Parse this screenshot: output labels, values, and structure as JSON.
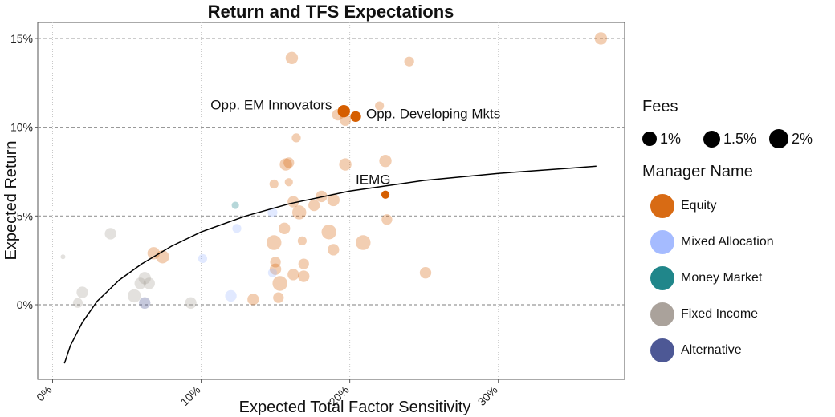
{
  "chart_data": {
    "type": "scatter",
    "title": "Return and TFS Expectations",
    "xlabel": "Expected Total Factor Sensitivity",
    "ylabel": "Expected Return",
    "xlim": [
      -0.01,
      0.385
    ],
    "ylim": [
      -0.042,
      0.159
    ],
    "x_ticks": [
      0,
      0.1,
      0.2,
      0.3
    ],
    "x_tick_labels": [
      "0%",
      "10%",
      "20%",
      "30%"
    ],
    "y_ticks": [
      0,
      0.05,
      0.1,
      0.15
    ],
    "y_tick_labels": [
      "0%",
      "5%",
      "10%",
      "15%"
    ],
    "grid": true,
    "categories": [
      "Equity",
      "Mixed Allocation",
      "Money Market",
      "Fixed Income",
      "Alternative"
    ],
    "colors": {
      "Equity": "#D55E00",
      "Mixed Allocation": "#9DB5FF",
      "Money Market": "#0D7C80",
      "Fixed Income": "#A39A93",
      "Alternative": "#3E4A8C"
    },
    "points": [
      {
        "x": 0.369,
        "y": 0.15,
        "fee": 1.6,
        "category": "Equity"
      },
      {
        "x": 0.161,
        "y": 0.139,
        "fee": 1.6,
        "category": "Equity"
      },
      {
        "x": 0.24,
        "y": 0.137,
        "fee": 1.3,
        "category": "Equity"
      },
      {
        "x": 0.22,
        "y": 0.112,
        "fee": 1.2,
        "category": "Equity"
      },
      {
        "x": 0.192,
        "y": 0.107,
        "fee": 1.5,
        "category": "Equity"
      },
      {
        "x": 0.197,
        "y": 0.104,
        "fee": 1.5,
        "category": "Equity"
      },
      {
        "x": 0.164,
        "y": 0.094,
        "fee": 1.2,
        "category": "Equity"
      },
      {
        "x": 0.157,
        "y": 0.079,
        "fee": 1.6,
        "category": "Equity"
      },
      {
        "x": 0.159,
        "y": 0.08,
        "fee": 1.4,
        "category": "Equity"
      },
      {
        "x": 0.197,
        "y": 0.079,
        "fee": 1.6,
        "category": "Equity"
      },
      {
        "x": 0.224,
        "y": 0.081,
        "fee": 1.6,
        "category": "Equity"
      },
      {
        "x": 0.159,
        "y": 0.069,
        "fee": 1.1,
        "category": "Equity"
      },
      {
        "x": 0.149,
        "y": 0.068,
        "fee": 1.2,
        "category": "Equity"
      },
      {
        "x": 0.181,
        "y": 0.061,
        "fee": 1.5,
        "category": "Equity"
      },
      {
        "x": 0.189,
        "y": 0.059,
        "fee": 1.6,
        "category": "Equity"
      },
      {
        "x": 0.176,
        "y": 0.056,
        "fee": 1.5,
        "category": "Equity"
      },
      {
        "x": 0.162,
        "y": 0.058,
        "fee": 1.5,
        "category": "Equity"
      },
      {
        "x": 0.166,
        "y": 0.052,
        "fee": 1.8,
        "category": "Equity"
      },
      {
        "x": 0.225,
        "y": 0.048,
        "fee": 1.4,
        "category": "Equity"
      },
      {
        "x": 0.156,
        "y": 0.043,
        "fee": 1.5,
        "category": "Equity"
      },
      {
        "x": 0.186,
        "y": 0.041,
        "fee": 1.9,
        "category": "Equity"
      },
      {
        "x": 0.168,
        "y": 0.036,
        "fee": 1.2,
        "category": "Equity"
      },
      {
        "x": 0.149,
        "y": 0.035,
        "fee": 1.9,
        "category": "Equity"
      },
      {
        "x": 0.209,
        "y": 0.035,
        "fee": 1.9,
        "category": "Equity"
      },
      {
        "x": 0.189,
        "y": 0.031,
        "fee": 1.5,
        "category": "Equity"
      },
      {
        "x": 0.068,
        "y": 0.029,
        "fee": 1.6,
        "category": "Equity"
      },
      {
        "x": 0.074,
        "y": 0.027,
        "fee": 1.7,
        "category": "Equity"
      },
      {
        "x": 0.15,
        "y": 0.024,
        "fee": 1.4,
        "category": "Equity"
      },
      {
        "x": 0.169,
        "y": 0.023,
        "fee": 1.4,
        "category": "Equity"
      },
      {
        "x": 0.15,
        "y": 0.02,
        "fee": 1.5,
        "category": "Equity"
      },
      {
        "x": 0.162,
        "y": 0.017,
        "fee": 1.5,
        "category": "Equity"
      },
      {
        "x": 0.251,
        "y": 0.018,
        "fee": 1.5,
        "category": "Equity"
      },
      {
        "x": 0.169,
        "y": 0.016,
        "fee": 1.5,
        "category": "Equity"
      },
      {
        "x": 0.153,
        "y": 0.012,
        "fee": 1.9,
        "category": "Equity"
      },
      {
        "x": 0.135,
        "y": 0.003,
        "fee": 1.5,
        "category": "Equity"
      },
      {
        "x": 0.152,
        "y": 0.004,
        "fee": 1.4,
        "category": "Equity"
      },
      {
        "x": 0.148,
        "y": 0.052,
        "fee": 1.3,
        "category": "Mixed Allocation"
      },
      {
        "x": 0.124,
        "y": 0.043,
        "fee": 1.2,
        "category": "Mixed Allocation"
      },
      {
        "x": 0.101,
        "y": 0.026,
        "fee": 1.2,
        "category": "Mixed Allocation"
      },
      {
        "x": 0.12,
        "y": 0.005,
        "fee": 1.5,
        "category": "Mixed Allocation"
      },
      {
        "x": 0.148,
        "y": 0.018,
        "fee": 1.2,
        "category": "Mixed Allocation"
      },
      {
        "x": 0.123,
        "y": 0.056,
        "fee": 1.0,
        "category": "Money Market"
      },
      {
        "x": 0.007,
        "y": 0.027,
        "fee": 0.7,
        "category": "Fixed Income"
      },
      {
        "x": 0.039,
        "y": 0.04,
        "fee": 1.5,
        "category": "Fixed Income"
      },
      {
        "x": 0.02,
        "y": 0.007,
        "fee": 1.5,
        "category": "Fixed Income"
      },
      {
        "x": 0.017,
        "y": 0.001,
        "fee": 1.3,
        "category": "Fixed Income"
      },
      {
        "x": 0.059,
        "y": 0.012,
        "fee": 1.5,
        "category": "Fixed Income"
      },
      {
        "x": 0.062,
        "y": 0.015,
        "fee": 1.6,
        "category": "Fixed Income"
      },
      {
        "x": 0.065,
        "y": 0.012,
        "fee": 1.5,
        "category": "Fixed Income"
      },
      {
        "x": 0.055,
        "y": 0.005,
        "fee": 1.7,
        "category": "Fixed Income"
      },
      {
        "x": 0.093,
        "y": 0.001,
        "fee": 1.5,
        "category": "Fixed Income"
      },
      {
        "x": 0.062,
        "y": 0.001,
        "fee": 1.5,
        "category": "Alternative"
      },
      {
        "x": 0.196,
        "y": 0.109,
        "fee": 1.6,
        "category": "Equity",
        "highlight": true
      },
      {
        "x": 0.204,
        "y": 0.106,
        "fee": 1.4,
        "category": "Equity",
        "highlight": true
      },
      {
        "x": 0.224,
        "y": 0.062,
        "fee": 1.1,
        "category": "Equity",
        "highlight": true
      }
    ],
    "annotations": [
      {
        "text": "Opp. EM Innovators",
        "x": 0.188,
        "y": 0.11,
        "anchor": "end"
      },
      {
        "text": "Opp. Developing Mkts",
        "x": 0.211,
        "y": 0.105,
        "anchor": "start"
      },
      {
        "text": "IEMG",
        "x": 0.204,
        "y": 0.068,
        "anchor": "start"
      }
    ],
    "curve": {
      "x": [
        0.008,
        0.012,
        0.02,
        0.03,
        0.045,
        0.06,
        0.08,
        0.1,
        0.13,
        0.16,
        0.2,
        0.25,
        0.3,
        0.35,
        0.366
      ],
      "y": [
        -0.033,
        -0.023,
        -0.01,
        0.002,
        0.014,
        0.023,
        0.033,
        0.041,
        0.05,
        0.057,
        0.064,
        0.07,
        0.074,
        0.077,
        0.078
      ]
    }
  },
  "legend": {
    "fees_title": "Fees",
    "fee_labels": [
      "1%",
      "1.5%",
      "2%"
    ],
    "manager_title": "Manager Name",
    "manager_items": [
      "Equity",
      "Mixed Allocation",
      "Money Market",
      "Fixed Income",
      "Alternative"
    ]
  }
}
